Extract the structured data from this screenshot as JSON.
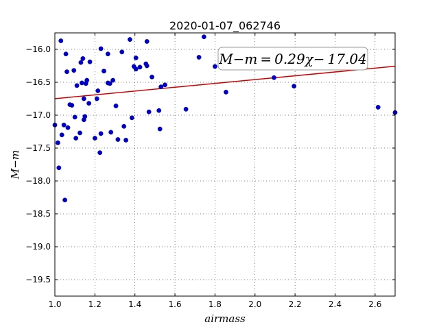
{
  "chart_data": {
    "type": "scatter",
    "title": "2020-01-07_062746",
    "xlabel": "airmass",
    "ylabel": "M−m",
    "xlim": [
      1.0,
      2.7
    ],
    "ylim": [
      -19.75,
      -15.75
    ],
    "y_inverted": false,
    "grid": true,
    "grid_style": "dotted",
    "xticks": [
      1.0,
      1.2,
      1.4,
      1.6,
      1.8,
      2.0,
      2.2,
      2.4,
      2.6
    ],
    "xtick_labels": [
      "1.0",
      "1.2",
      "1.4",
      "1.6",
      "1.8",
      "2.0",
      "2.2",
      "2.4",
      "2.6"
    ],
    "yticks": [
      -16.0,
      -16.5,
      -17.0,
      -17.5,
      -18.0,
      -18.5,
      -19.0,
      -19.5
    ],
    "ytick_labels": [
      "−16.0",
      "−16.5",
      "−17.0",
      "−17.5",
      "−18.0",
      "−18.5",
      "−19.0",
      "−19.5"
    ],
    "points": {
      "color": "#0000cc",
      "x": [
        1.0,
        1.015,
        1.02,
        1.03,
        1.035,
        1.045,
        1.05,
        1.055,
        1.06,
        1.065,
        1.075,
        1.085,
        1.095,
        1.1,
        1.105,
        1.11,
        1.125,
        1.13,
        1.135,
        1.14,
        1.145,
        1.145,
        1.15,
        1.155,
        1.16,
        1.17,
        1.175,
        1.2,
        1.21,
        1.215,
        1.225,
        1.23,
        1.23,
        1.245,
        1.265,
        1.265,
        1.275,
        1.28,
        1.29,
        1.305,
        1.315,
        1.335,
        1.345,
        1.355,
        1.375,
        1.385,
        1.395,
        1.405,
        1.405,
        1.425,
        1.455,
        1.46,
        1.46,
        1.47,
        1.485,
        1.52,
        1.525,
        1.53,
        1.55,
        1.655,
        1.72,
        1.745,
        1.8,
        1.855,
        2.095,
        2.195,
        2.615,
        2.7
      ],
      "y": [
        -17.15,
        -17.42,
        -17.8,
        -15.87,
        -17.3,
        -17.15,
        -18.29,
        -16.07,
        -16.34,
        -17.19,
        -16.84,
        -16.85,
        -16.32,
        -17.03,
        -17.35,
        -16.55,
        -17.27,
        -16.2,
        -16.51,
        -16.14,
        -16.75,
        -17.07,
        -17.02,
        -16.52,
        -16.47,
        -16.82,
        -16.19,
        -17.35,
        -16.75,
        -16.63,
        -17.57,
        -17.28,
        -15.99,
        -16.33,
        -16.51,
        -16.07,
        -16.52,
        -17.26,
        -16.47,
        -16.86,
        -17.37,
        -16.04,
        -17.17,
        -17.38,
        -15.85,
        -17.04,
        -16.26,
        -16.13,
        -16.3,
        -16.27,
        -16.22,
        -16.25,
        -15.88,
        -16.95,
        -16.42,
        -16.93,
        -17.21,
        -16.57,
        -16.54,
        -16.91,
        -16.12,
        -15.81,
        -16.26,
        -16.65,
        -16.43,
        -16.56,
        -16.88,
        -16.96
      ]
    },
    "fit_line": {
      "color": "#cc0000",
      "slope": 0.29,
      "intercept": -17.04
    },
    "annotation": {
      "text": "M−m = 0.29χ− 17.04"
    }
  }
}
